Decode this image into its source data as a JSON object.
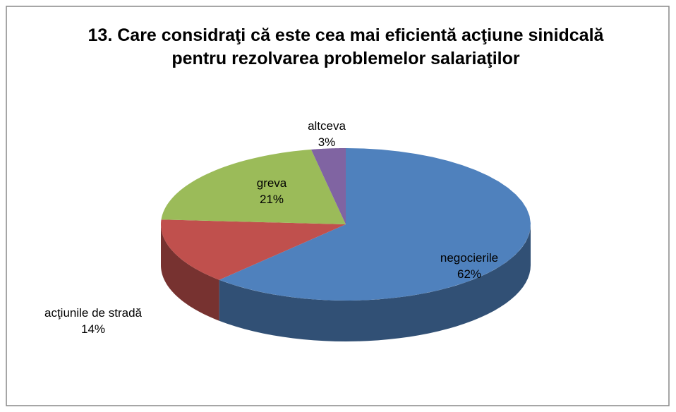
{
  "chart_data": {
    "type": "pie",
    "title": "13. Care considraţi că este cea mai eficientă acţiune sinidcală pentru rezolvarea problemelor salariaţilor",
    "categories": [
      "negocierile",
      "acţiunile de stradă",
      "greva",
      "altceva"
    ],
    "values": [
      62,
      14,
      21,
      3
    ],
    "value_labels": [
      "62%",
      "14%",
      "21%",
      "3%"
    ],
    "colors": [
      "#4f81bd",
      "#c0504d",
      "#9bbb59",
      "#8064a2"
    ]
  }
}
